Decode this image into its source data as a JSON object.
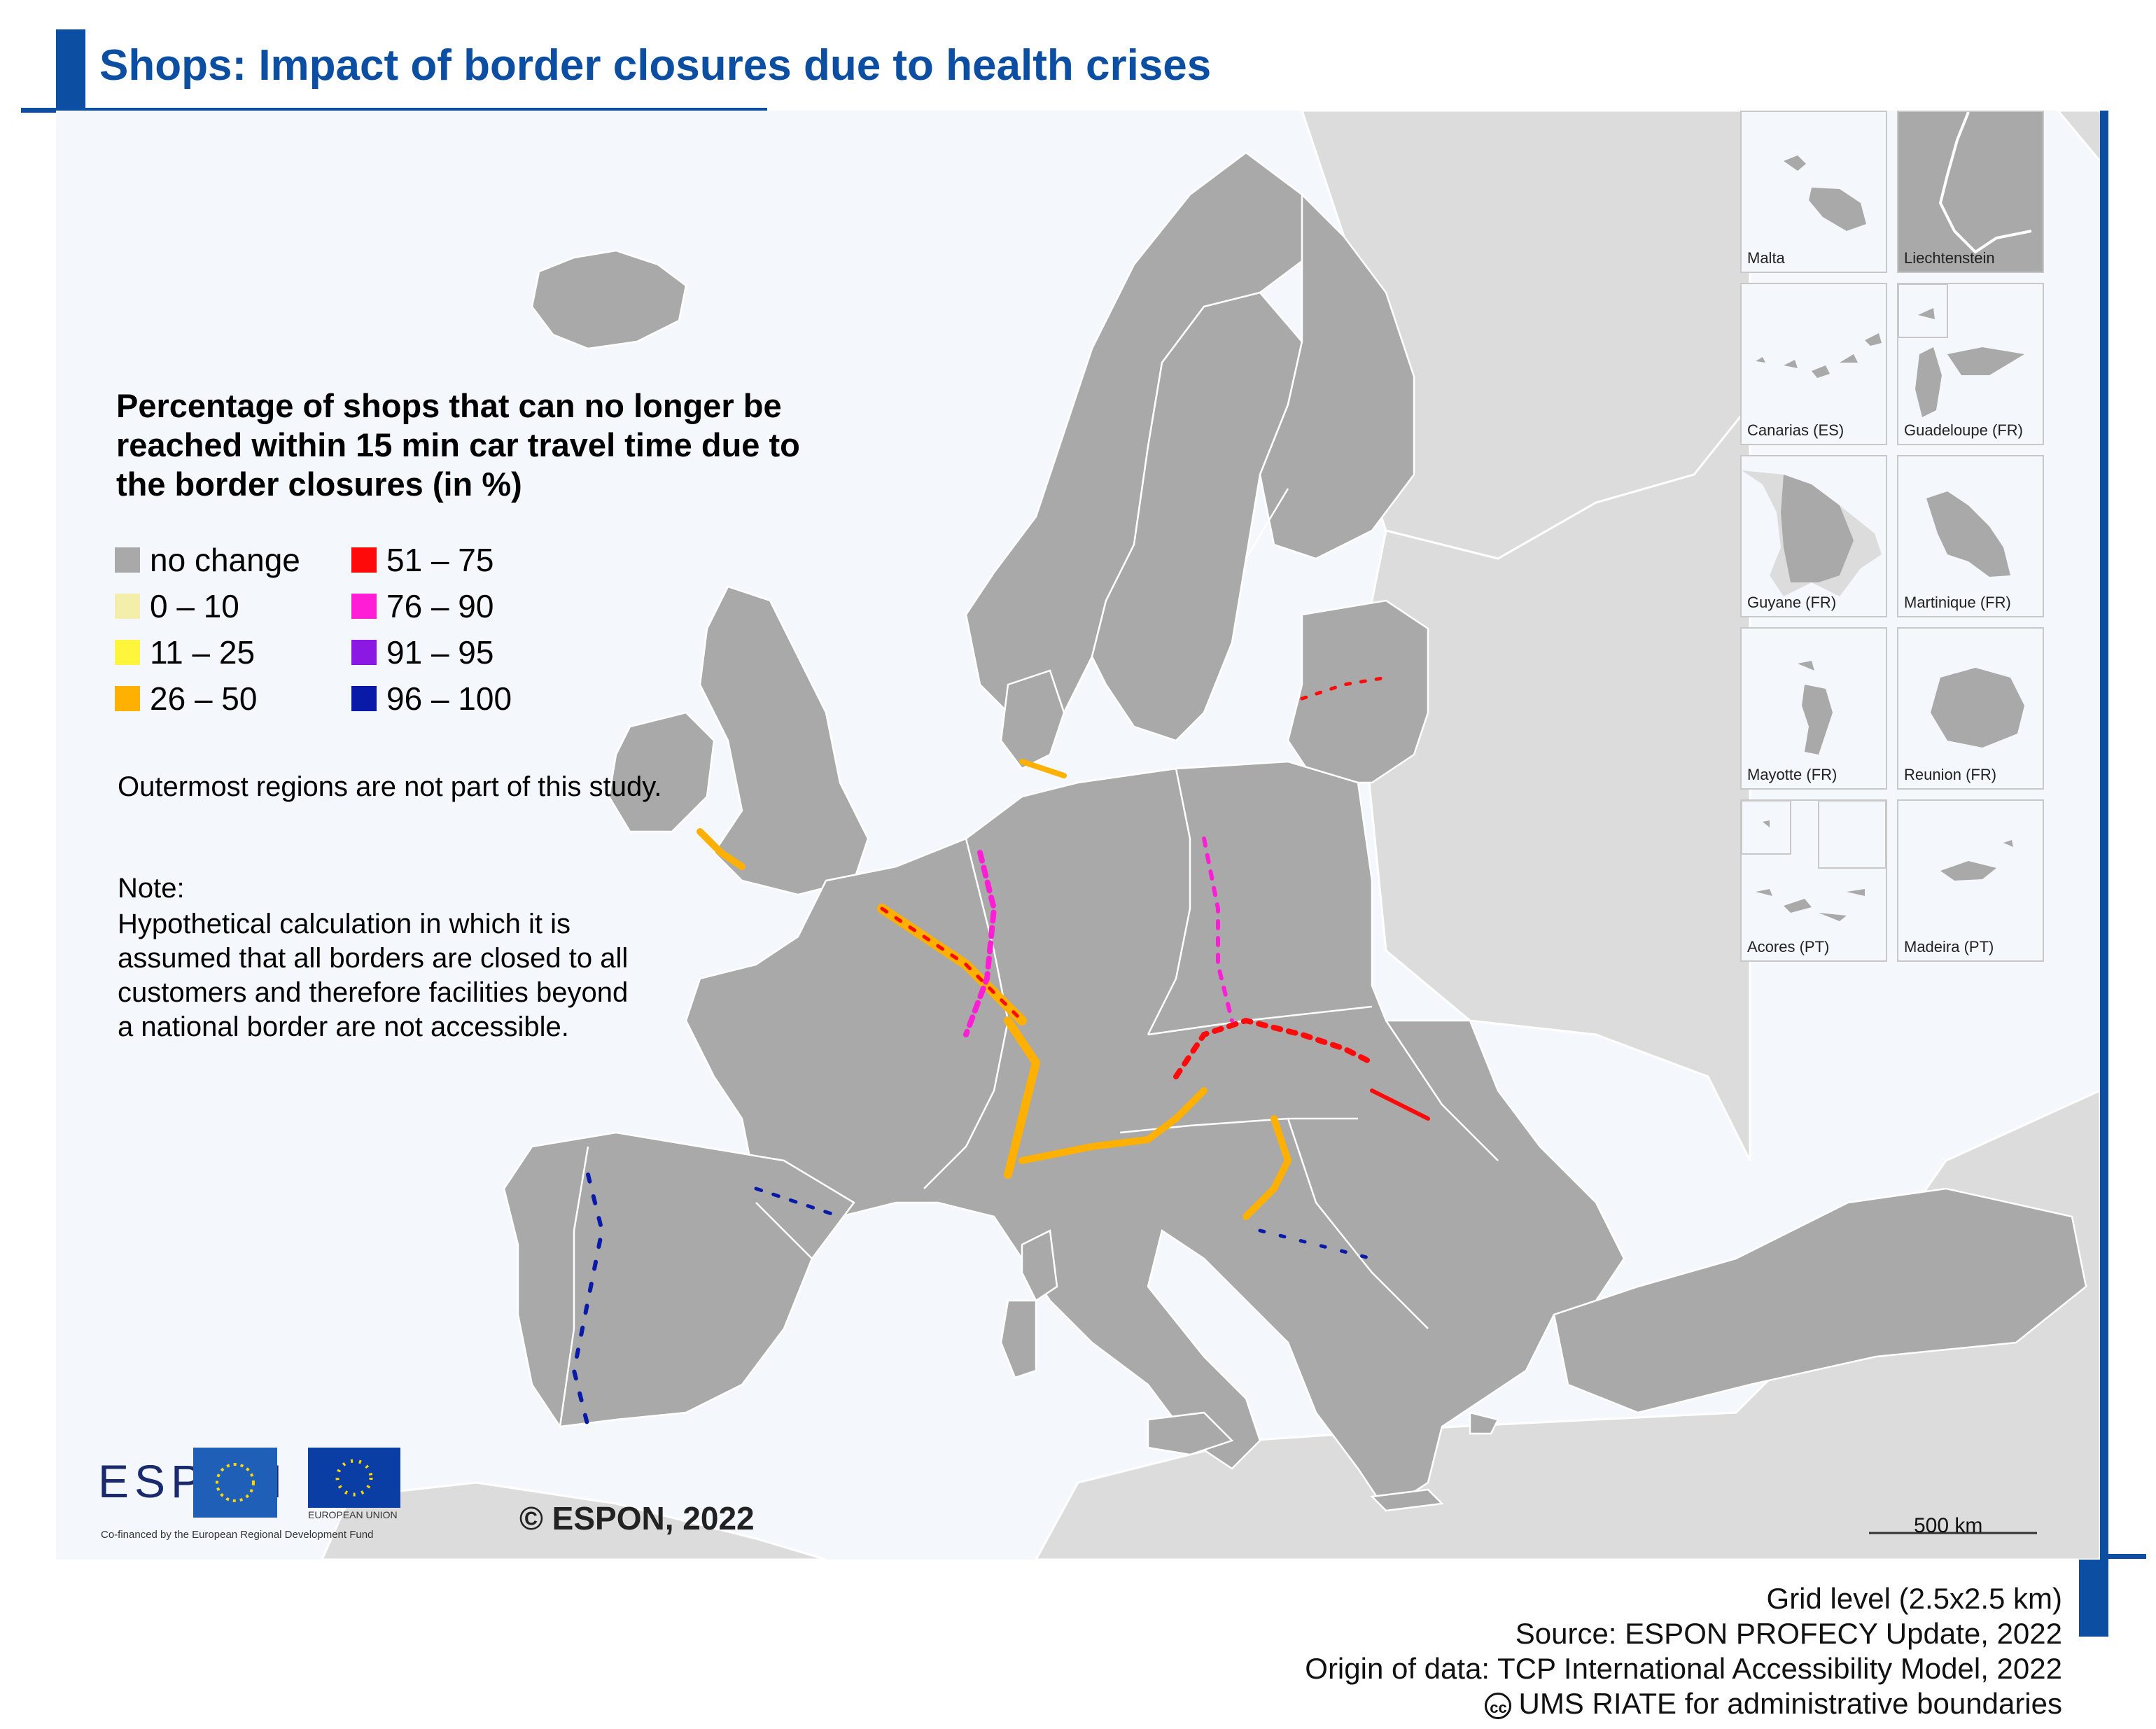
{
  "title": "Shops: Impact of border closures due to health crises",
  "legend": {
    "title": "Percentage of shops that can no longer be reached within 15 min car travel time due to the border closures (in %)",
    "items": [
      {
        "label": "no change",
        "color": "#a9a9a9"
      },
      {
        "label": "0 – 10",
        "color": "#f3eeaa"
      },
      {
        "label": "11 – 25",
        "color": "#fff53a"
      },
      {
        "label": "26 – 50",
        "color": "#ffb000"
      },
      {
        "label": "51 – 75",
        "color": "#ff0a0a"
      },
      {
        "label": "76 – 90",
        "color": "#ff1ed6"
      },
      {
        "label": "91 – 95",
        "color": "#8c18e4"
      },
      {
        "label": "96 – 100",
        "color": "#0a1aa8"
      }
    ]
  },
  "notes": {
    "outermost": "Outermost regions are not part of this study.",
    "note_heading": "Note:",
    "note_body": "Hypothetical calculation in which it is assumed that all borders are closed to all customers and therefore facilities beyond a national border are not accessible."
  },
  "insets": [
    {
      "label": "Malta"
    },
    {
      "label": "Liechtenstein"
    },
    {
      "label": "Canarias (ES)"
    },
    {
      "label": "Guadeloupe (FR)"
    },
    {
      "label": "Guyane (FR)"
    },
    {
      "label": "Martinique (FR)"
    },
    {
      "label": "Mayotte (FR)"
    },
    {
      "label": "Reunion (FR)"
    },
    {
      "label": "Acores (PT)"
    },
    {
      "label": "Madeira (PT)"
    }
  ],
  "scale_bar": "500 km",
  "copyright": "© ESPON, 2022",
  "logos": {
    "espon": "ESPON",
    "espon_caption": "Co-financed by the European Regional Development Fund",
    "eu_caption": "EUROPEAN UNION"
  },
  "footer": {
    "grid": "Grid level (2.5x2.5 km)",
    "source": "Source: ESPON PROFECY Update, 2022",
    "origin": "Origin of data: TCP International Accessibility Model, 2022",
    "boundaries": "UMS RIATE for administrative boundaries",
    "cc_symbol": "cc"
  },
  "colors": {
    "accent_blue": "#0b4ea2",
    "land_study": "#a9a9a9",
    "land_other": "#dcdcdc",
    "sea": "#f4f8fd"
  }
}
